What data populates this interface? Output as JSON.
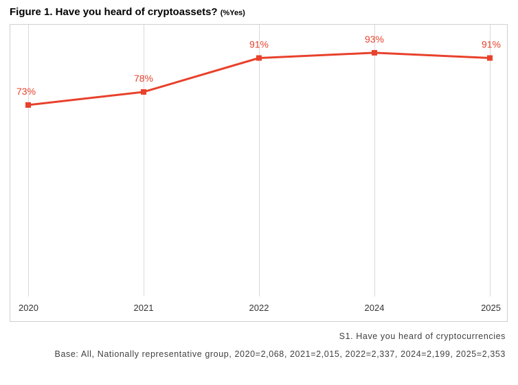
{
  "figure": {
    "title": "Figure 1. Have you heard of cryptoassets?",
    "title_suffix": "(%Yes)"
  },
  "notes": {
    "question": "S1. Have you heard of cryptocurrencies",
    "base": "Base: All, Nationally representative group, 2020=2,068, 2021=2,015, 2022=2,337, 2024=2,199, 2025=2,353"
  },
  "chart_data": {
    "type": "line",
    "title": "Figure 1. Have you heard of cryptoassets? (%Yes)",
    "categories": [
      "2020",
      "2021",
      "2022",
      "2024",
      "2025"
    ],
    "series": [
      {
        "name": "",
        "values": [
          73,
          78,
          91,
          93,
          91
        ],
        "labels": [
          "73%",
          "78%",
          "91%",
          "93%",
          "91%"
        ],
        "color": "#e8412c"
      }
    ],
    "xlabel": "",
    "ylabel": "",
    "ylim": [
      60,
      95
    ],
    "y_axis_visible": false,
    "grid": "vertical",
    "legend": "none"
  }
}
